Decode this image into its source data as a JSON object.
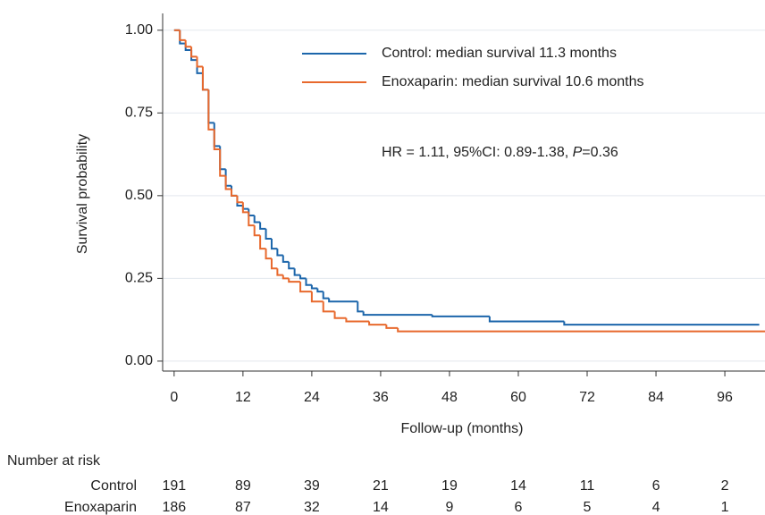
{
  "chart_data": {
    "type": "step",
    "y_label": "Survival probability",
    "x_label": "Follow-up (months)",
    "xlim": [
      -2,
      103
    ],
    "ylim": [
      -0.03,
      1.04
    ],
    "xticks": [
      0,
      12,
      24,
      36,
      48,
      60,
      72,
      84,
      96
    ],
    "yticks": [
      {
        "value": 0,
        "label": "0.00"
      },
      {
        "value": 0.25,
        "label": "0.25"
      },
      {
        "value": 0.5,
        "label": "0.50"
      },
      {
        "value": 0.75,
        "label": "0.75"
      },
      {
        "value": 1,
        "label": "1.00"
      }
    ],
    "grid": true,
    "series": [
      {
        "name": "Control: median survival 11.3 months",
        "color": "#1c66ab",
        "x": [
          0,
          1,
          2,
          3,
          4,
          5,
          6,
          7,
          8,
          9,
          10,
          11,
          12,
          13,
          14,
          15,
          16,
          17,
          18,
          19,
          20,
          21,
          22,
          23,
          24,
          25,
          26,
          27,
          32,
          33,
          45,
          55,
          68,
          102
        ],
        "values": [
          1.0,
          0.96,
          0.94,
          0.91,
          0.87,
          0.82,
          0.72,
          0.65,
          0.58,
          0.53,
          0.5,
          0.47,
          0.46,
          0.44,
          0.42,
          0.4,
          0.37,
          0.34,
          0.32,
          0.3,
          0.28,
          0.26,
          0.25,
          0.23,
          0.22,
          0.21,
          0.19,
          0.18,
          0.15,
          0.14,
          0.135,
          0.12,
          0.11,
          0.11
        ]
      },
      {
        "name": "Enoxaparin: median survival 10.6 months",
        "color": "#e8692d",
        "x": [
          0,
          1,
          2,
          3,
          4,
          5,
          6,
          7,
          8,
          9,
          10,
          11,
          12,
          13,
          14,
          15,
          16,
          17,
          18,
          19,
          20,
          22,
          24,
          26,
          28,
          30,
          34,
          37,
          39,
          103
        ],
        "values": [
          1.0,
          0.97,
          0.95,
          0.92,
          0.89,
          0.82,
          0.7,
          0.64,
          0.56,
          0.52,
          0.5,
          0.48,
          0.45,
          0.41,
          0.38,
          0.34,
          0.31,
          0.28,
          0.26,
          0.25,
          0.24,
          0.21,
          0.18,
          0.15,
          0.13,
          0.12,
          0.11,
          0.1,
          0.09,
          0.09
        ]
      }
    ],
    "legend": "top-right",
    "annotation": {
      "prefix": "HR = 1.11, 95%CI: 0.89-1.38, ",
      "p": "P",
      "suffix": "=0.36"
    },
    "risk_table": {
      "title": "Number at risk",
      "rows": [
        {
          "name": "Control",
          "values": [
            191,
            89,
            39,
            21,
            19,
            14,
            11,
            6,
            2
          ]
        },
        {
          "name": "Enoxaparin",
          "values": [
            186,
            87,
            32,
            14,
            9,
            6,
            5,
            4,
            1
          ]
        }
      ]
    }
  }
}
